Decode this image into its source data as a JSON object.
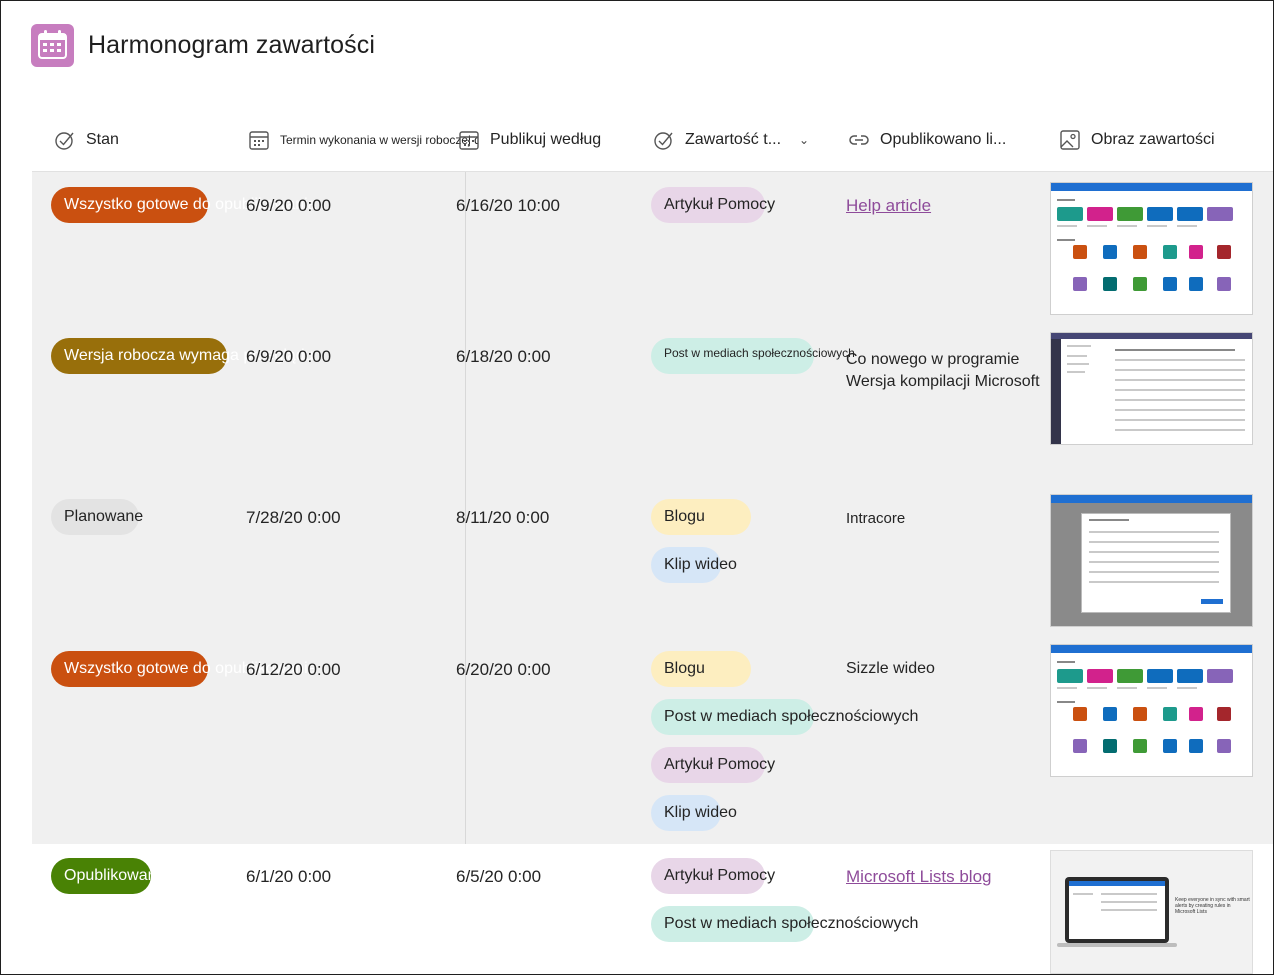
{
  "app": {
    "title": "Harmonogram zawartości",
    "icon": "calendar-icon"
  },
  "columns": [
    {
      "label": "Stan",
      "icon": "checkmark-circle-icon"
    },
    {
      "label": "Termin wykonania w wersji roboczej do",
      "icon": "calendar-icon"
    },
    {
      "label": "Publikuj według",
      "icon": "calendar-icon"
    },
    {
      "label": "Zawartość t...",
      "icon": "checkmark-circle-icon"
    },
    {
      "label": "Opublikowano li...",
      "icon": "link-icon"
    },
    {
      "label": "Obraz zawartości",
      "icon": "image-icon"
    }
  ],
  "rows": [
    {
      "status": "Wszystko gotowe do opublikowania",
      "status_color": "#ca5010",
      "draft_due": "6/9/20 0:00",
      "publish_by": "6/16/20 10:00",
      "content_types": [
        "Artykuł Pomocy"
      ],
      "published_link": "Help article",
      "published_is_link": true,
      "image": "screenshot-sharepoint-apps"
    },
    {
      "status": "Wersja robocza wymaga przeglądu",
      "status_color": "#986f0b",
      "draft_due": "6/9/20 0:00",
      "publish_by": "6/18/20 0:00",
      "content_types": [
        "Post w mediach społecznościowych"
      ],
      "published_link": "Co nowego w programie Wersja kompilacji Microsoft",
      "published_link_line1": "Co nowego w programie",
      "published_link_line2": "Wersja kompilacji Microsoft",
      "published_is_link": false,
      "image": "screenshot-teams-list"
    },
    {
      "status": "Planowane",
      "status_color": "#e6e6e6",
      "draft_due": "7/28/20 0:00",
      "publish_by": "8/11/20 0:00",
      "content_types": [
        "Blogu",
        "Klip wideo"
      ],
      "published_link": "Intracore",
      "published_is_link": false,
      "image": "screenshot-dialog"
    },
    {
      "status": "Wszystko gotowe do opublikowania",
      "status_color": "#ca5010",
      "draft_due": "6/12/20 0:00",
      "publish_by": "6/20/20 0:00",
      "content_types": [
        "Blogu",
        "Post w mediach społecznościowych",
        "Artykuł Pomocy",
        "Klip wideo"
      ],
      "published_link": "Sizzle wideo",
      "published_is_link": false,
      "image": "screenshot-sharepoint-apps"
    },
    {
      "status": "Opublikowano",
      "status_color": "#498205",
      "draft_due": "6/1/20 0:00",
      "publish_by": "6/5/20 0:00",
      "content_types": [
        "Artykuł Pomocy",
        "Post w mediach społecznościowych"
      ],
      "published_link": "Microsoft Lists blog",
      "published_is_link": true,
      "image": "screenshot-laptop-lists"
    }
  ],
  "thumb_caption": "Keep everyone in sync with smart alerts by creating rules in Microsoft Lists",
  "choice_colors": {
    "Artykuł Pomocy": "#e8d6e8",
    "Post w mediach społecznościowych": "#cdeee6",
    "Blogu": "#fdeec0",
    "Klip wideo": "#d6e6f7"
  }
}
